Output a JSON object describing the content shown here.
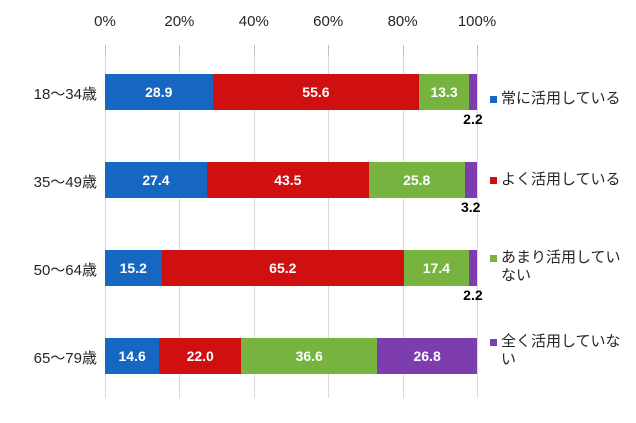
{
  "chart_data": {
    "type": "bar",
    "orientation": "horizontal",
    "stacked": true,
    "title": "",
    "xlabel": "",
    "ylabel": "",
    "xlim": [
      0,
      100
    ],
    "x_ticks": [
      "0%",
      "20%",
      "40%",
      "60%",
      "80%",
      "100%"
    ],
    "x_tick_values": [
      0,
      20,
      40,
      60,
      80,
      100
    ],
    "grid": true,
    "legend_position": "right",
    "categories": [
      "18〜34歳",
      "35〜49歳",
      "50〜64歳",
      "65〜79歳"
    ],
    "series": [
      {
        "name": "常に活用している",
        "color": "#1667c1",
        "values": [
          28.9,
          27.4,
          15.2,
          14.6
        ]
      },
      {
        "name": "よく活用している",
        "color": "#d01010",
        "values": [
          55.6,
          43.5,
          65.2,
          22.0
        ]
      },
      {
        "name": "あまり活用していない",
        "color": "#77b43f",
        "values": [
          13.3,
          25.8,
          17.4,
          36.6
        ]
      },
      {
        "name": "全く活用していない",
        "color": "#7d3dae",
        "values": [
          2.2,
          3.2,
          2.2,
          26.8
        ]
      }
    ],
    "value_labels": [
      [
        "28.9",
        "55.6",
        "13.3",
        "2.2"
      ],
      [
        "27.4",
        "43.5",
        "25.8",
        "3.2"
      ],
      [
        "15.2",
        "65.2",
        "17.4",
        "2.2"
      ],
      [
        "14.6",
        "22.0",
        "36.6",
        "26.8"
      ]
    ]
  },
  "style_colors": {
    "gridline": "#d9d9d9",
    "tickmark": "#bfbfbf",
    "axis_text": "#262626",
    "bar_label_inside": "#ffffff",
    "bar_label_outside": "#000000",
    "background": "#ffffff"
  }
}
